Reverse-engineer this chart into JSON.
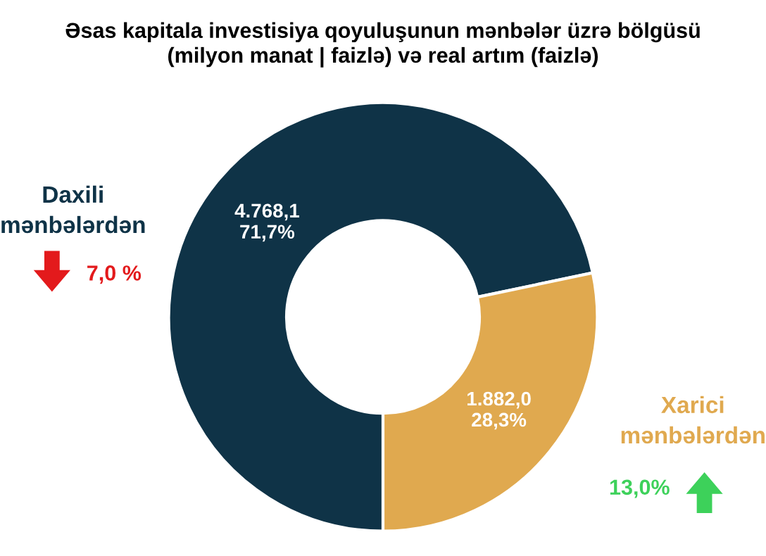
{
  "chart_data": {
    "type": "donut",
    "title": "Əsas kapitala investisiya qoyuluşunun mənbələr üzrə bölgüsü\n(milyon manat | faizlə) və real artım (faizlə)",
    "categories": [
      "Daxili\nmənbələrdən",
      "Xarici\nmənbələrdən"
    ],
    "values": [
      4768.1,
      1882.0
    ],
    "colors": [
      "#0f3347",
      "#e0a94f"
    ],
    "value_labels": [
      "4.768,1\n71,7%",
      "1.882,0\n28,3%"
    ],
    "annotations": [
      "7,0 %",
      "13,0%"
    ],
    "legend": false
  }
}
